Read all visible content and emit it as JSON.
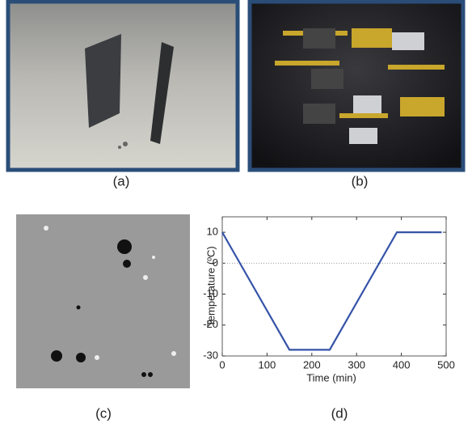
{
  "panels": [
    {
      "caption": "(a)"
    },
    {
      "caption": "(b)"
    },
    {
      "caption": "(c)"
    }
  ],
  "chart_data": {
    "type": "line",
    "caption": "(d)",
    "x_label": "Time (min)",
    "y_label": "Temperature (ºC)",
    "x": [
      0,
      150,
      240,
      390,
      490
    ],
    "series": [
      {
        "color": "#3553a8",
        "values": [
          10,
          -28,
          -28,
          10,
          10
        ]
      }
    ],
    "xlim": [
      0,
      500
    ],
    "xticks": [
      0,
      100,
      200,
      300,
      400,
      500
    ],
    "ylim": [
      -30,
      15
    ],
    "yticks": [
      10,
      0,
      -10,
      -20,
      -30
    ],
    "zero_line": true
  }
}
